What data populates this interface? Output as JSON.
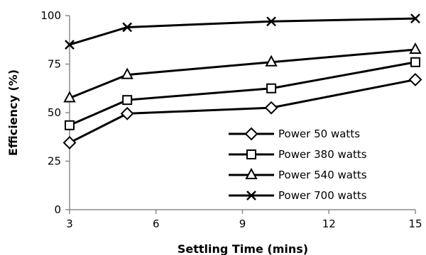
{
  "chart_data": {
    "type": "line",
    "xlabel": "Settling Time (mins)",
    "ylabel": "Efficiency (%)",
    "xlim": [
      3,
      15
    ],
    "ylim": [
      0,
      100
    ],
    "xticks": [
      3,
      6,
      9,
      12,
      15
    ],
    "yticks": [
      0,
      25,
      50,
      75,
      100
    ],
    "grid": false,
    "legend_position": "bottom-right",
    "x": [
      3,
      5,
      10,
      15
    ],
    "series": [
      {
        "name": "Power 50 watts",
        "marker": "diamond",
        "values": [
          34.5,
          49.5,
          52.5,
          67
        ]
      },
      {
        "name": "Power 380 watts",
        "marker": "square",
        "values": [
          43.5,
          56.5,
          62.5,
          76
        ]
      },
      {
        "name": "Power 540 watts",
        "marker": "triangle",
        "values": [
          57.5,
          69.5,
          76,
          82.5
        ]
      },
      {
        "name": "Power 700 watts",
        "marker": "cross",
        "values": [
          85,
          94,
          97,
          98.5
        ]
      }
    ],
    "colors": {
      "line": "#000000",
      "background": "#ffffff"
    }
  }
}
